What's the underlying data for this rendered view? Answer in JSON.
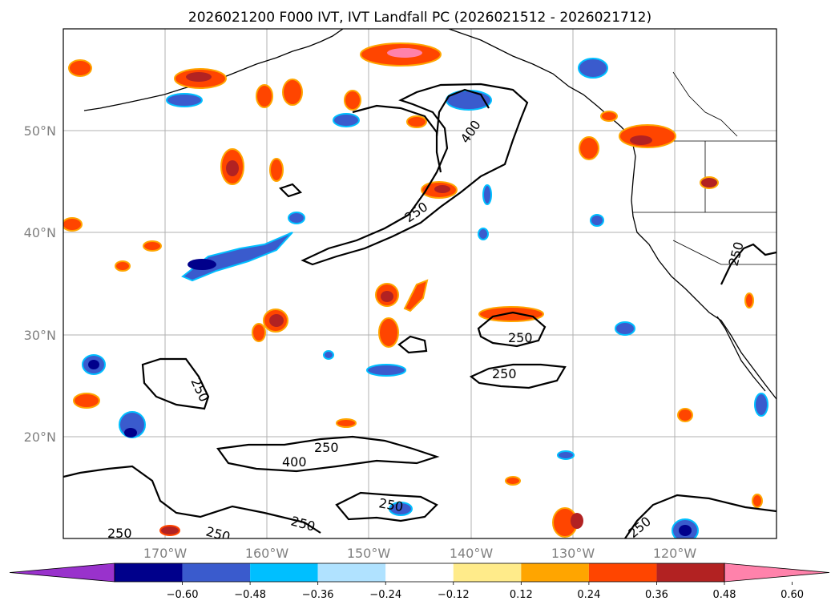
{
  "title": "2026021200 F000 IVT, IVT Landfall PC (2026021512 - 2026021712)",
  "lat_labels": [
    "50°N",
    "40°N",
    "30°N",
    "20°N"
  ],
  "lon_labels": [
    "170°W",
    "160°W",
    "150°W",
    "140°W",
    "130°W",
    "120°W"
  ],
  "colorbar": {
    "ticks": [
      "−0.60",
      "−0.48",
      "−0.36",
      "−0.24",
      "−0.12",
      "0.12",
      "0.24",
      "0.36",
      "0.48",
      "0.60"
    ],
    "colors": [
      "#9932cc",
      "#00008b",
      "#3a5bcd",
      "#00bfff",
      "#b0e2ff",
      "#ffffff",
      "#ffeb8a",
      "#ffa500",
      "#ff4500",
      "#b22222",
      "#ff82ab"
    ]
  },
  "contour_labels": {
    "ivt_400_upper": "400",
    "ivt_250_upper": "250",
    "ivt_250_east_a": "250",
    "ivt_250_east_b": "250",
    "ivt_250_west": "250",
    "ivt_250_south": "250",
    "ivt_400_south": "400",
    "ivt_250_bottom_a": "250",
    "ivt_250_bottom_b": "250",
    "ivt_250_bottom_c": "250",
    "ivt_250_bottom_d": "250",
    "ivt_250_bottom_e": "250",
    "ivt_250_coast": "250"
  }
}
